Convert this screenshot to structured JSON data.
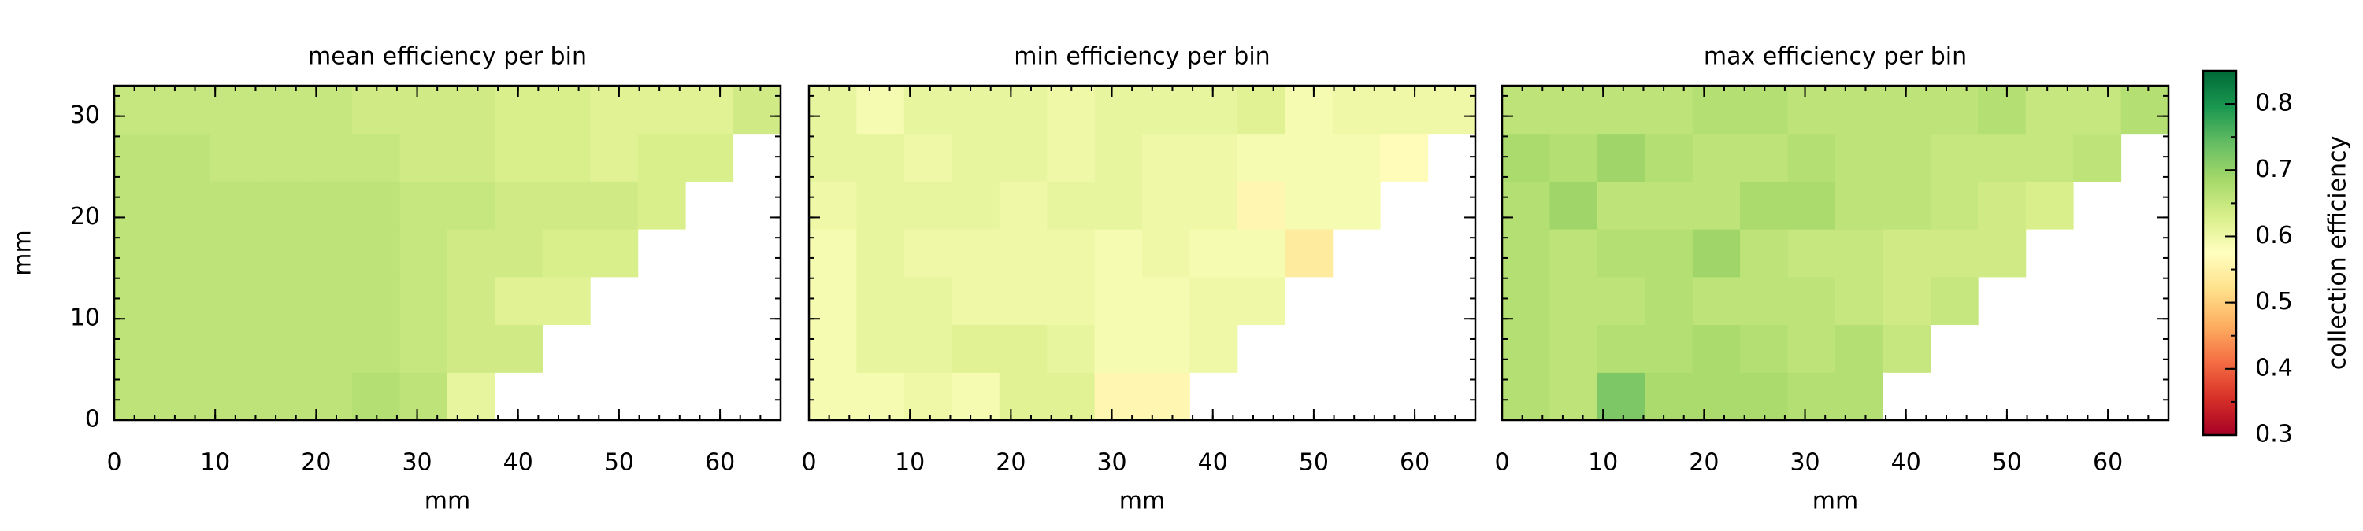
{
  "chart_data": [
    {
      "type": "heatmap",
      "title": "mean efficiency per bin",
      "xlabel": "mm",
      "ylabel": "mm",
      "xlim": [
        0,
        66
      ],
      "ylim": [
        0,
        33
      ],
      "xticks": [
        0,
        10,
        20,
        30,
        40,
        50,
        60
      ],
      "yticks": [
        0,
        10,
        20,
        30
      ],
      "xbins": [
        0,
        4.71,
        9.43,
        14.14,
        18.86,
        23.57,
        28.29,
        33,
        37.71,
        42.43,
        47.14,
        51.86,
        56.57,
        61.29,
        66
      ],
      "ybins": [
        0,
        4.71,
        9.43,
        14.14,
        18.86,
        23.57,
        28.29,
        33
      ],
      "z": [
        [
          0.66,
          0.66,
          0.66,
          0.66,
          0.66,
          0.67,
          0.66,
          0.61,
          null,
          null,
          null,
          null,
          null,
          null
        ],
        [
          0.66,
          0.66,
          0.66,
          0.66,
          0.66,
          0.66,
          0.65,
          0.64,
          0.64,
          null,
          null,
          null,
          null,
          null
        ],
        [
          0.66,
          0.66,
          0.66,
          0.66,
          0.66,
          0.66,
          0.65,
          0.64,
          0.62,
          0.62,
          null,
          null,
          null,
          null
        ],
        [
          0.66,
          0.66,
          0.66,
          0.66,
          0.66,
          0.66,
          0.65,
          0.64,
          0.64,
          0.63,
          0.63,
          null,
          null,
          null
        ],
        [
          0.66,
          0.66,
          0.66,
          0.66,
          0.66,
          0.66,
          0.65,
          0.65,
          0.64,
          0.64,
          0.64,
          0.63,
          null,
          null
        ],
        [
          0.66,
          0.66,
          0.65,
          0.65,
          0.65,
          0.65,
          0.64,
          0.64,
          0.63,
          0.63,
          0.62,
          0.63,
          0.63,
          null
        ],
        [
          0.65,
          0.65,
          0.65,
          0.65,
          0.65,
          0.64,
          0.64,
          0.64,
          0.63,
          0.63,
          0.62,
          0.62,
          0.62,
          0.64
        ]
      ]
    },
    {
      "type": "heatmap",
      "title": "min efficiency per bin",
      "xlabel": "mm",
      "xlim": [
        0,
        66
      ],
      "ylim": [
        0,
        33
      ],
      "xticks": [
        0,
        10,
        20,
        30,
        40,
        50,
        60
      ],
      "yticks": [
        0,
        10,
        20,
        30
      ],
      "xbins": [
        0,
        4.71,
        9.43,
        14.14,
        18.86,
        23.57,
        28.29,
        33,
        37.71,
        42.43,
        47.14,
        51.86,
        56.57,
        61.29,
        66
      ],
      "ybins": [
        0,
        4.71,
        9.43,
        14.14,
        18.86,
        23.57,
        28.29,
        33
      ],
      "z": [
        [
          0.59,
          0.59,
          0.6,
          0.59,
          0.62,
          0.62,
          0.56,
          0.56,
          null,
          null,
          null,
          null,
          null,
          null
        ],
        [
          0.59,
          0.61,
          0.61,
          0.62,
          0.62,
          0.61,
          0.59,
          0.59,
          0.6,
          null,
          null,
          null,
          null,
          null
        ],
        [
          0.59,
          0.61,
          0.61,
          0.6,
          0.6,
          0.6,
          0.59,
          0.59,
          0.6,
          0.6,
          null,
          null,
          null,
          null
        ],
        [
          0.59,
          0.61,
          0.6,
          0.6,
          0.6,
          0.6,
          0.59,
          0.6,
          0.59,
          0.59,
          0.54,
          null,
          null,
          null
        ],
        [
          0.6,
          0.61,
          0.61,
          0.61,
          0.6,
          0.61,
          0.61,
          0.6,
          0.6,
          0.56,
          0.59,
          0.59,
          null,
          null
        ],
        [
          0.61,
          0.61,
          0.6,
          0.61,
          0.61,
          0.6,
          0.61,
          0.6,
          0.6,
          0.59,
          0.59,
          0.59,
          0.57,
          null
        ],
        [
          0.61,
          0.59,
          0.61,
          0.61,
          0.61,
          0.6,
          0.61,
          0.61,
          0.61,
          0.62,
          0.59,
          0.6,
          0.6,
          0.6
        ]
      ]
    },
    {
      "type": "heatmap",
      "title": "max efficiency per bin",
      "xlabel": "mm",
      "xlim": [
        0,
        66
      ],
      "ylim": [
        0,
        33
      ],
      "xticks": [
        0,
        10,
        20,
        30,
        40,
        50,
        60
      ],
      "yticks": [
        0,
        10,
        20,
        30
      ],
      "xbins": [
        0,
        4.71,
        9.43,
        14.14,
        18.86,
        23.57,
        28.29,
        33,
        37.71,
        42.43,
        47.14,
        51.86,
        56.57,
        61.29,
        66
      ],
      "ybins": [
        0,
        4.71,
        9.43,
        14.14,
        18.86,
        23.57,
        28.29,
        33
      ],
      "z": [
        [
          0.67,
          0.66,
          0.72,
          0.68,
          0.68,
          0.68,
          0.67,
          0.67,
          null,
          null,
          null,
          null,
          null,
          null
        ],
        [
          0.67,
          0.66,
          0.67,
          0.67,
          0.68,
          0.67,
          0.66,
          0.67,
          0.65,
          null,
          null,
          null,
          null,
          null
        ],
        [
          0.67,
          0.66,
          0.66,
          0.67,
          0.66,
          0.66,
          0.66,
          0.65,
          0.64,
          0.65,
          null,
          null,
          null,
          null
        ],
        [
          0.67,
          0.66,
          0.67,
          0.67,
          0.69,
          0.66,
          0.65,
          0.65,
          0.64,
          0.64,
          0.64,
          null,
          null,
          null
        ],
        [
          0.67,
          0.69,
          0.66,
          0.66,
          0.66,
          0.68,
          0.68,
          0.66,
          0.66,
          0.65,
          0.64,
          0.63,
          null,
          null
        ],
        [
          0.68,
          0.67,
          0.69,
          0.67,
          0.66,
          0.66,
          0.67,
          0.66,
          0.66,
          0.65,
          0.65,
          0.65,
          0.66,
          null
        ],
        [
          0.66,
          0.66,
          0.66,
          0.66,
          0.67,
          0.67,
          0.66,
          0.66,
          0.66,
          0.66,
          0.67,
          0.65,
          0.65,
          0.67
        ]
      ]
    }
  ],
  "colorbar": {
    "label": "collection efficiency",
    "colormap": "RdYlGn",
    "lim": [
      0.3,
      0.85
    ],
    "ticks": [
      0.3,
      0.4,
      0.5,
      0.6,
      0.7,
      0.8
    ]
  }
}
